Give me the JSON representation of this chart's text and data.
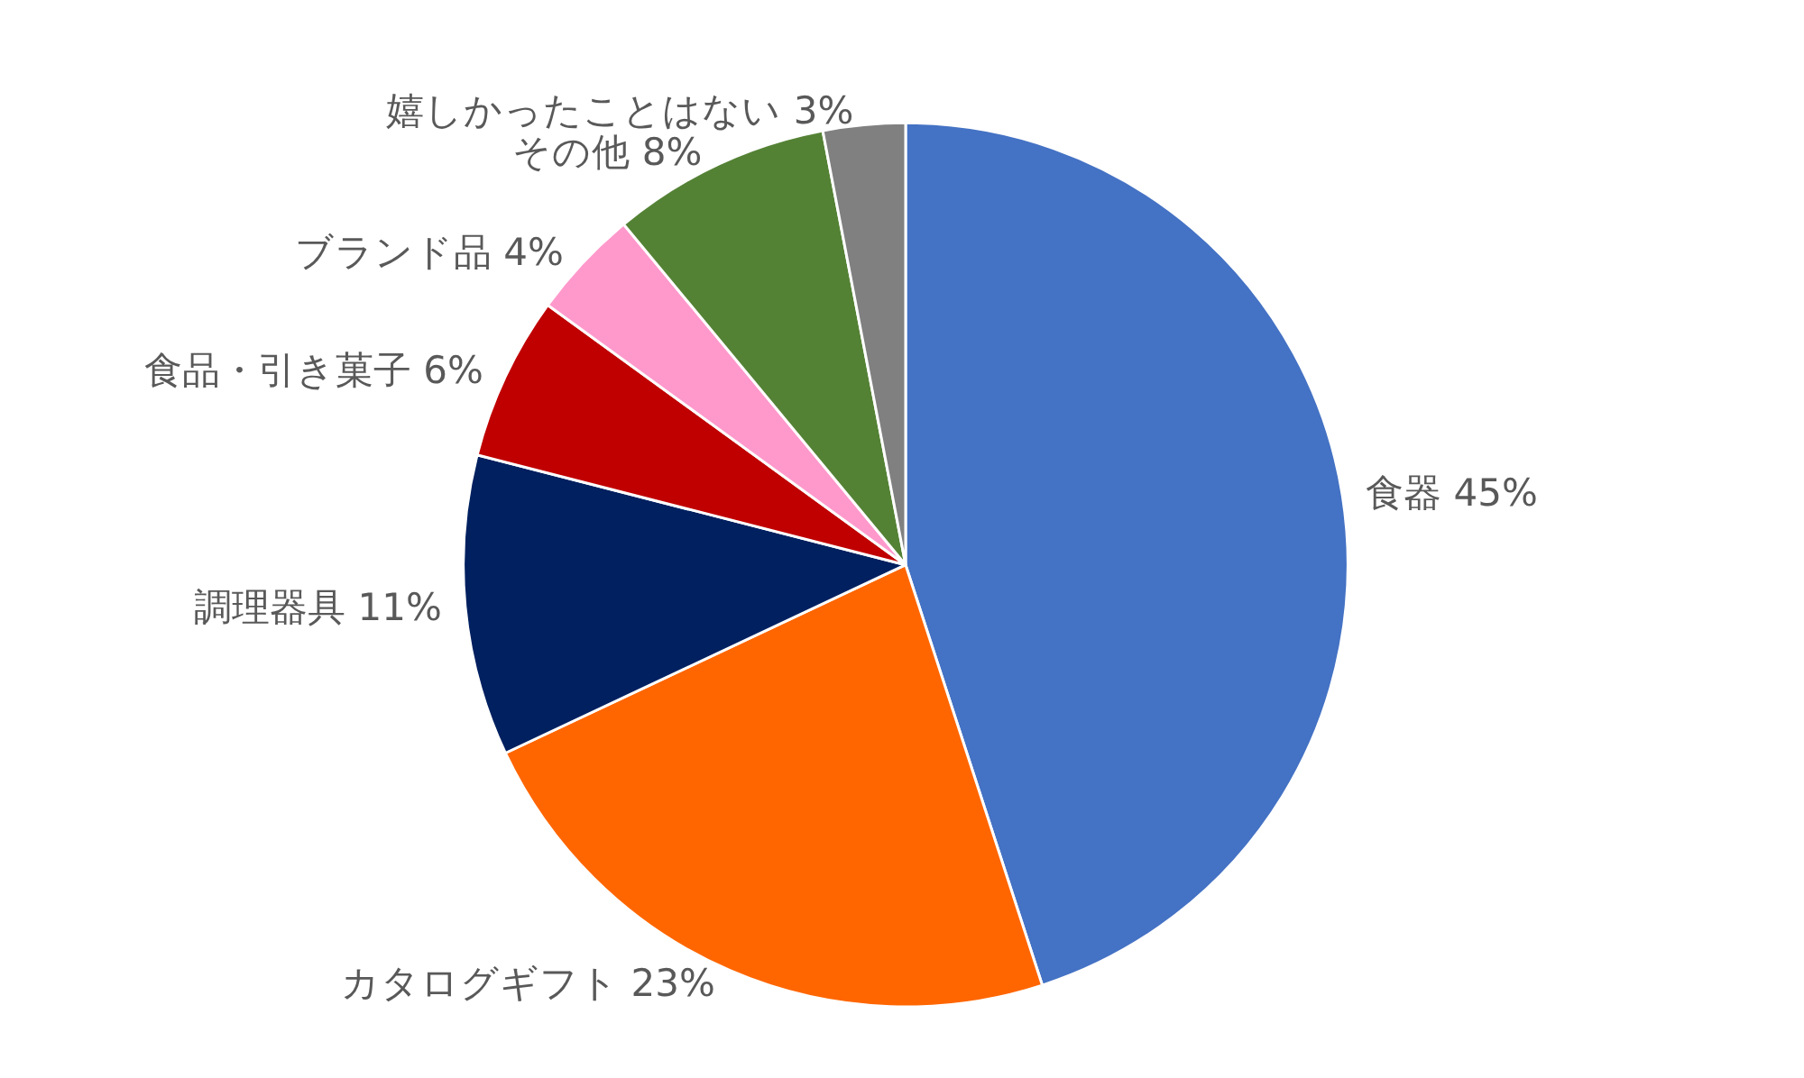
{
  "chart_data": {
    "type": "pie",
    "categories": [
      "食器",
      "カタログギフト",
      "調理器具",
      "食品・引き菓子",
      "ブランド品",
      "その他",
      "嬉しかったことはない"
    ],
    "values": [
      45,
      23,
      11,
      6,
      4,
      8,
      3
    ],
    "value_labels": [
      "45%",
      "23%",
      "11%",
      "6%",
      "4%",
      "8%",
      "3%"
    ],
    "colors": [
      "#4472c4",
      "#ff6600",
      "#002060",
      "#c00000",
      "#ff99cc",
      "#548235",
      "#808080"
    ],
    "legend": false
  }
}
